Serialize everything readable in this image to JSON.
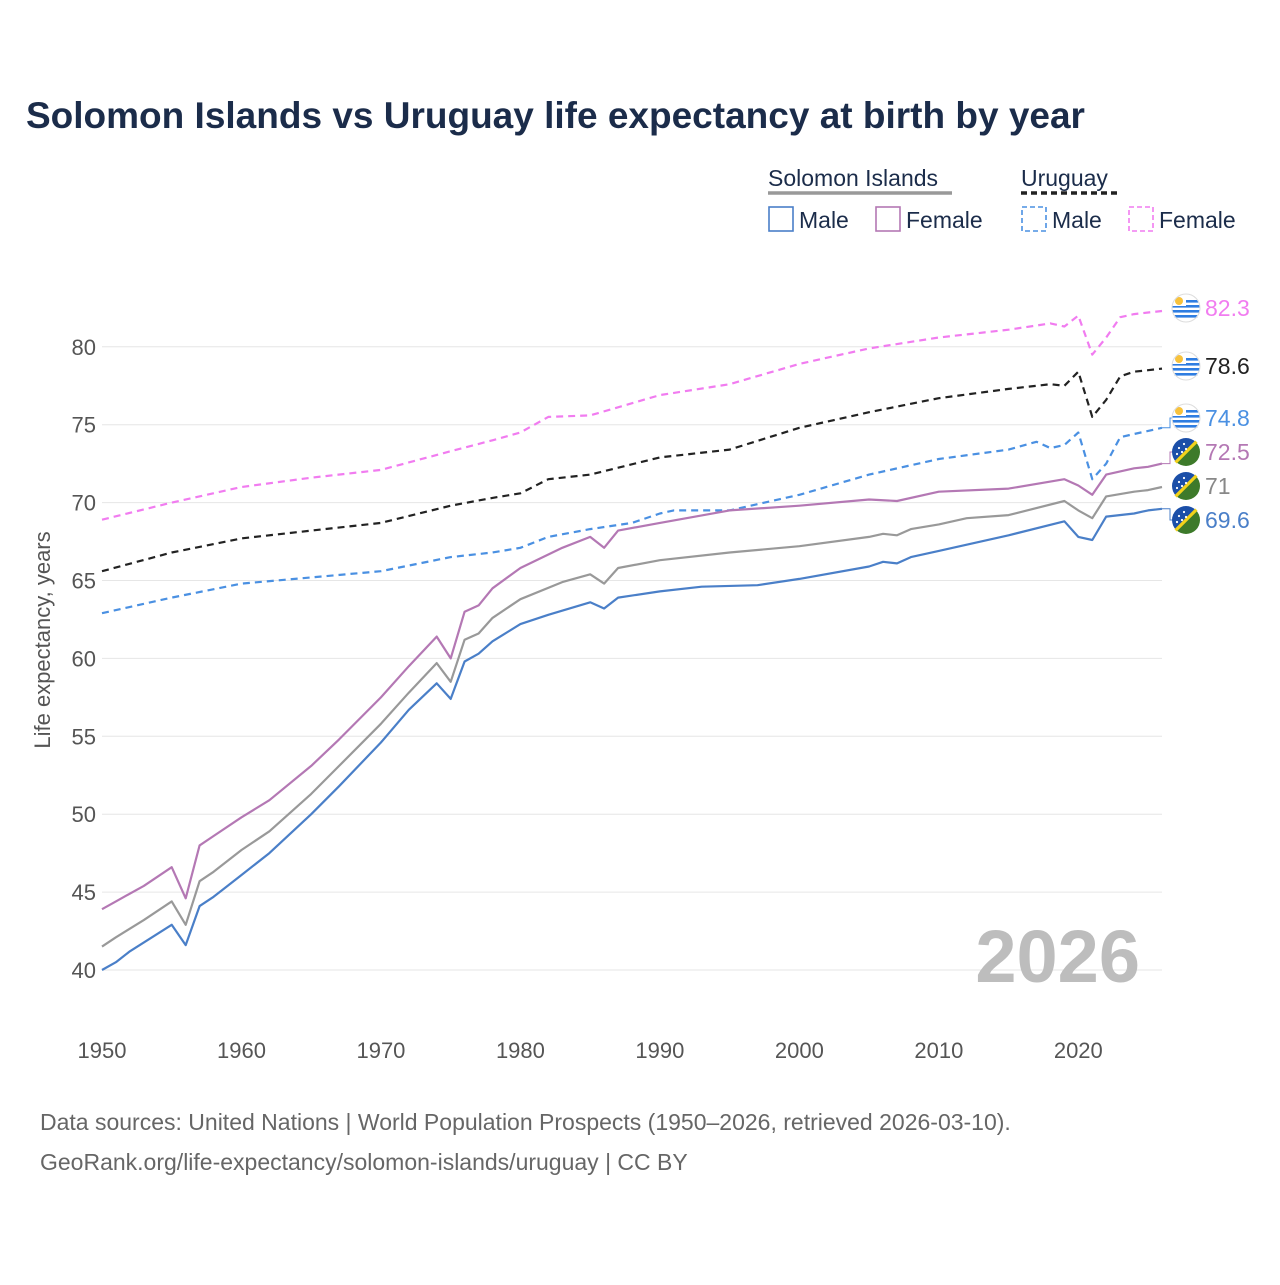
{
  "chart_data": {
    "type": "line",
    "title": "Solomon Islands vs Uruguay life expectancy at birth by year",
    "ylabel": "Life expectancy, years",
    "xlabel": "",
    "xlim": [
      1950,
      2026
    ],
    "ylim": [
      38,
      85
    ],
    "x_ticks": [
      1950,
      1960,
      1970,
      1980,
      1990,
      2000,
      2010,
      2020
    ],
    "y_ticks": [
      40,
      45,
      50,
      55,
      60,
      65,
      70,
      75,
      80
    ],
    "grid": "horizontal",
    "current_year": "2026",
    "legend": {
      "groups": [
        {
          "name": "Solomon Islands",
          "underline_color": "#999999",
          "underline_style": "solid",
          "items": [
            {
              "label": "Male",
              "color": "#4a7fc8",
              "dash": false
            },
            {
              "label": "Female",
              "color": "#b478b4",
              "dash": false
            }
          ]
        },
        {
          "name": "Uruguay",
          "underline_color": "#222222",
          "underline_style": "dashed",
          "items": [
            {
              "label": "Male",
              "color": "#4a90e2",
              "dash": true
            },
            {
              "label": "Female",
              "color": "#f17cf0",
              "dash": true
            }
          ]
        }
      ]
    },
    "series": [
      {
        "name": "Uruguay Female",
        "country": "Uruguay",
        "color": "#f17cf0",
        "dash": true,
        "end_label": "82.3",
        "points": [
          [
            1950,
            68.9
          ],
          [
            1955,
            70.0
          ],
          [
            1960,
            71.0
          ],
          [
            1965,
            71.6
          ],
          [
            1970,
            72.1
          ],
          [
            1975,
            73.3
          ],
          [
            1978,
            74.0
          ],
          [
            1980,
            74.5
          ],
          [
            1982,
            75.5
          ],
          [
            1985,
            75.6
          ],
          [
            1990,
            76.9
          ],
          [
            1995,
            77.6
          ],
          [
            2000,
            78.9
          ],
          [
            2005,
            79.9
          ],
          [
            2010,
            80.6
          ],
          [
            2015,
            81.1
          ],
          [
            2018,
            81.5
          ],
          [
            2019,
            81.3
          ],
          [
            2020,
            82.0
          ],
          [
            2021,
            79.5
          ],
          [
            2022,
            80.6
          ],
          [
            2023,
            81.9
          ],
          [
            2024,
            82.1
          ],
          [
            2025,
            82.2
          ],
          [
            2026,
            82.3
          ]
        ]
      },
      {
        "name": "Uruguay Total",
        "country": "Uruguay",
        "color": "#222222",
        "dash": true,
        "end_label": "78.6",
        "points": [
          [
            1950,
            65.6
          ],
          [
            1955,
            66.8
          ],
          [
            1960,
            67.7
          ],
          [
            1965,
            68.2
          ],
          [
            1970,
            68.7
          ],
          [
            1975,
            69.8
          ],
          [
            1978,
            70.3
          ],
          [
            1980,
            70.6
          ],
          [
            1982,
            71.5
          ],
          [
            1985,
            71.8
          ],
          [
            1990,
            72.9
          ],
          [
            1995,
            73.4
          ],
          [
            2000,
            74.8
          ],
          [
            2005,
            75.8
          ],
          [
            2010,
            76.7
          ],
          [
            2015,
            77.3
          ],
          [
            2018,
            77.6
          ],
          [
            2019,
            77.5
          ],
          [
            2020,
            78.4
          ],
          [
            2021,
            75.5
          ],
          [
            2022,
            76.6
          ],
          [
            2023,
            78.1
          ],
          [
            2024,
            78.4
          ],
          [
            2025,
            78.5
          ],
          [
            2026,
            78.6
          ]
        ]
      },
      {
        "name": "Uruguay Male",
        "country": "Uruguay",
        "color": "#4a90e2",
        "dash": true,
        "end_label": "74.8",
        "points": [
          [
            1950,
            62.9
          ],
          [
            1955,
            63.9
          ],
          [
            1960,
            64.8
          ],
          [
            1965,
            65.2
          ],
          [
            1970,
            65.6
          ],
          [
            1975,
            66.5
          ],
          [
            1978,
            66.8
          ],
          [
            1980,
            67.1
          ],
          [
            1982,
            67.8
          ],
          [
            1985,
            68.3
          ],
          [
            1988,
            68.7
          ],
          [
            1990,
            69.3
          ],
          [
            1991,
            69.5
          ],
          [
            1995,
            69.5
          ],
          [
            2000,
            70.5
          ],
          [
            2005,
            71.8
          ],
          [
            2010,
            72.8
          ],
          [
            2015,
            73.4
          ],
          [
            2017,
            73.9
          ],
          [
            2018,
            73.5
          ],
          [
            2019,
            73.7
          ],
          [
            2020,
            74.5
          ],
          [
            2021,
            71.5
          ],
          [
            2022,
            72.5
          ],
          [
            2023,
            74.2
          ],
          [
            2024,
            74.4
          ],
          [
            2025,
            74.6
          ],
          [
            2026,
            74.8
          ]
        ]
      },
      {
        "name": "Solomon Islands Female",
        "country": "Solomon Islands",
        "color": "#b478b4",
        "dash": false,
        "end_label": "72.5",
        "points": [
          [
            1950,
            43.9
          ],
          [
            1951,
            44.4
          ],
          [
            1953,
            45.4
          ],
          [
            1955,
            46.6
          ],
          [
            1956,
            44.6
          ],
          [
            1957,
            48.0
          ],
          [
            1958,
            48.6
          ],
          [
            1960,
            49.8
          ],
          [
            1962,
            50.9
          ],
          [
            1965,
            53.1
          ],
          [
            1967,
            54.8
          ],
          [
            1970,
            57.5
          ],
          [
            1972,
            59.5
          ],
          [
            1974,
            61.4
          ],
          [
            1975,
            60.0
          ],
          [
            1976,
            63.0
          ],
          [
            1977,
            63.4
          ],
          [
            1978,
            64.5
          ],
          [
            1980,
            65.8
          ],
          [
            1983,
            67.1
          ],
          [
            1985,
            67.8
          ],
          [
            1986,
            67.1
          ],
          [
            1987,
            68.2
          ],
          [
            1990,
            68.7
          ],
          [
            1995,
            69.5
          ],
          [
            2000,
            69.8
          ],
          [
            2005,
            70.2
          ],
          [
            2007,
            70.1
          ],
          [
            2010,
            70.7
          ],
          [
            2015,
            70.9
          ],
          [
            2019,
            71.5
          ],
          [
            2020,
            71.1
          ],
          [
            2021,
            70.5
          ],
          [
            2022,
            71.8
          ],
          [
            2024,
            72.2
          ],
          [
            2025,
            72.3
          ],
          [
            2026,
            72.5
          ]
        ]
      },
      {
        "name": "Solomon Islands Total",
        "country": "Solomon Islands",
        "color": "#999999",
        "dash": false,
        "end_label": "71",
        "points": [
          [
            1950,
            41.5
          ],
          [
            1951,
            42.1
          ],
          [
            1953,
            43.2
          ],
          [
            1955,
            44.4
          ],
          [
            1956,
            42.9
          ],
          [
            1957,
            45.7
          ],
          [
            1958,
            46.3
          ],
          [
            1960,
            47.7
          ],
          [
            1962,
            48.9
          ],
          [
            1965,
            51.3
          ],
          [
            1967,
            53.1
          ],
          [
            1970,
            55.8
          ],
          [
            1972,
            57.8
          ],
          [
            1974,
            59.7
          ],
          [
            1975,
            58.5
          ],
          [
            1976,
            61.2
          ],
          [
            1977,
            61.6
          ],
          [
            1978,
            62.6
          ],
          [
            1980,
            63.8
          ],
          [
            1983,
            64.9
          ],
          [
            1985,
            65.4
          ],
          [
            1986,
            64.8
          ],
          [
            1987,
            65.8
          ],
          [
            1990,
            66.3
          ],
          [
            1995,
            66.8
          ],
          [
            2000,
            67.2
          ],
          [
            2005,
            67.8
          ],
          [
            2006,
            68.0
          ],
          [
            2007,
            67.9
          ],
          [
            2008,
            68.3
          ],
          [
            2010,
            68.6
          ],
          [
            2012,
            69.0
          ],
          [
            2015,
            69.2
          ],
          [
            2019,
            70.1
          ],
          [
            2020,
            69.5
          ],
          [
            2021,
            69.0
          ],
          [
            2022,
            70.4
          ],
          [
            2024,
            70.7
          ],
          [
            2025,
            70.8
          ],
          [
            2026,
            71.0
          ]
        ]
      },
      {
        "name": "Solomon Islands Male",
        "country": "Solomon Islands",
        "color": "#4a7fc8",
        "dash": false,
        "end_label": "69.6",
        "points": [
          [
            1950,
            40.0
          ],
          [
            1951,
            40.5
          ],
          [
            1952,
            41.2
          ],
          [
            1955,
            42.9
          ],
          [
            1956,
            41.6
          ],
          [
            1957,
            44.1
          ],
          [
            1958,
            44.7
          ],
          [
            1960,
            46.1
          ],
          [
            1962,
            47.5
          ],
          [
            1965,
            50.0
          ],
          [
            1967,
            51.8
          ],
          [
            1970,
            54.6
          ],
          [
            1972,
            56.7
          ],
          [
            1974,
            58.4
          ],
          [
            1975,
            57.4
          ],
          [
            1976,
            59.8
          ],
          [
            1977,
            60.3
          ],
          [
            1978,
            61.1
          ],
          [
            1980,
            62.2
          ],
          [
            1982,
            62.8
          ],
          [
            1985,
            63.6
          ],
          [
            1986,
            63.2
          ],
          [
            1987,
            63.9
          ],
          [
            1990,
            64.3
          ],
          [
            1993,
            64.6
          ],
          [
            1997,
            64.7
          ],
          [
            2000,
            65.1
          ],
          [
            2005,
            65.9
          ],
          [
            2006,
            66.2
          ],
          [
            2007,
            66.1
          ],
          [
            2008,
            66.5
          ],
          [
            2010,
            66.9
          ],
          [
            2012,
            67.3
          ],
          [
            2015,
            67.9
          ],
          [
            2019,
            68.8
          ],
          [
            2020,
            67.8
          ],
          [
            2021,
            67.6
          ],
          [
            2022,
            69.1
          ],
          [
            2024,
            69.3
          ],
          [
            2025,
            69.5
          ],
          [
            2026,
            69.6
          ]
        ]
      }
    ],
    "end_labels": [
      {
        "text": "82.3",
        "color": "#f17cf0",
        "flag": "uruguay-flag"
      },
      {
        "text": "78.6",
        "color": "#222222",
        "flag": "uruguay-flag"
      },
      {
        "text": "74.8",
        "color": "#4a90e2",
        "flag": "uruguay-flag"
      },
      {
        "text": "72.5",
        "color": "#b478b4",
        "flag": "solomon-islands-flag"
      },
      {
        "text": "71",
        "color": "#888888",
        "flag": "solomon-islands-flag"
      },
      {
        "text": "69.6",
        "color": "#4a7fc8",
        "flag": "solomon-islands-flag"
      }
    ],
    "source_line_1": "Data sources: United Nations | World Population Prospects (1950–2026, retrieved 2026-03-10).",
    "source_line_2": "GeoRank.org/life-expectancy/solomon-islands/uruguay | CC BY"
  }
}
